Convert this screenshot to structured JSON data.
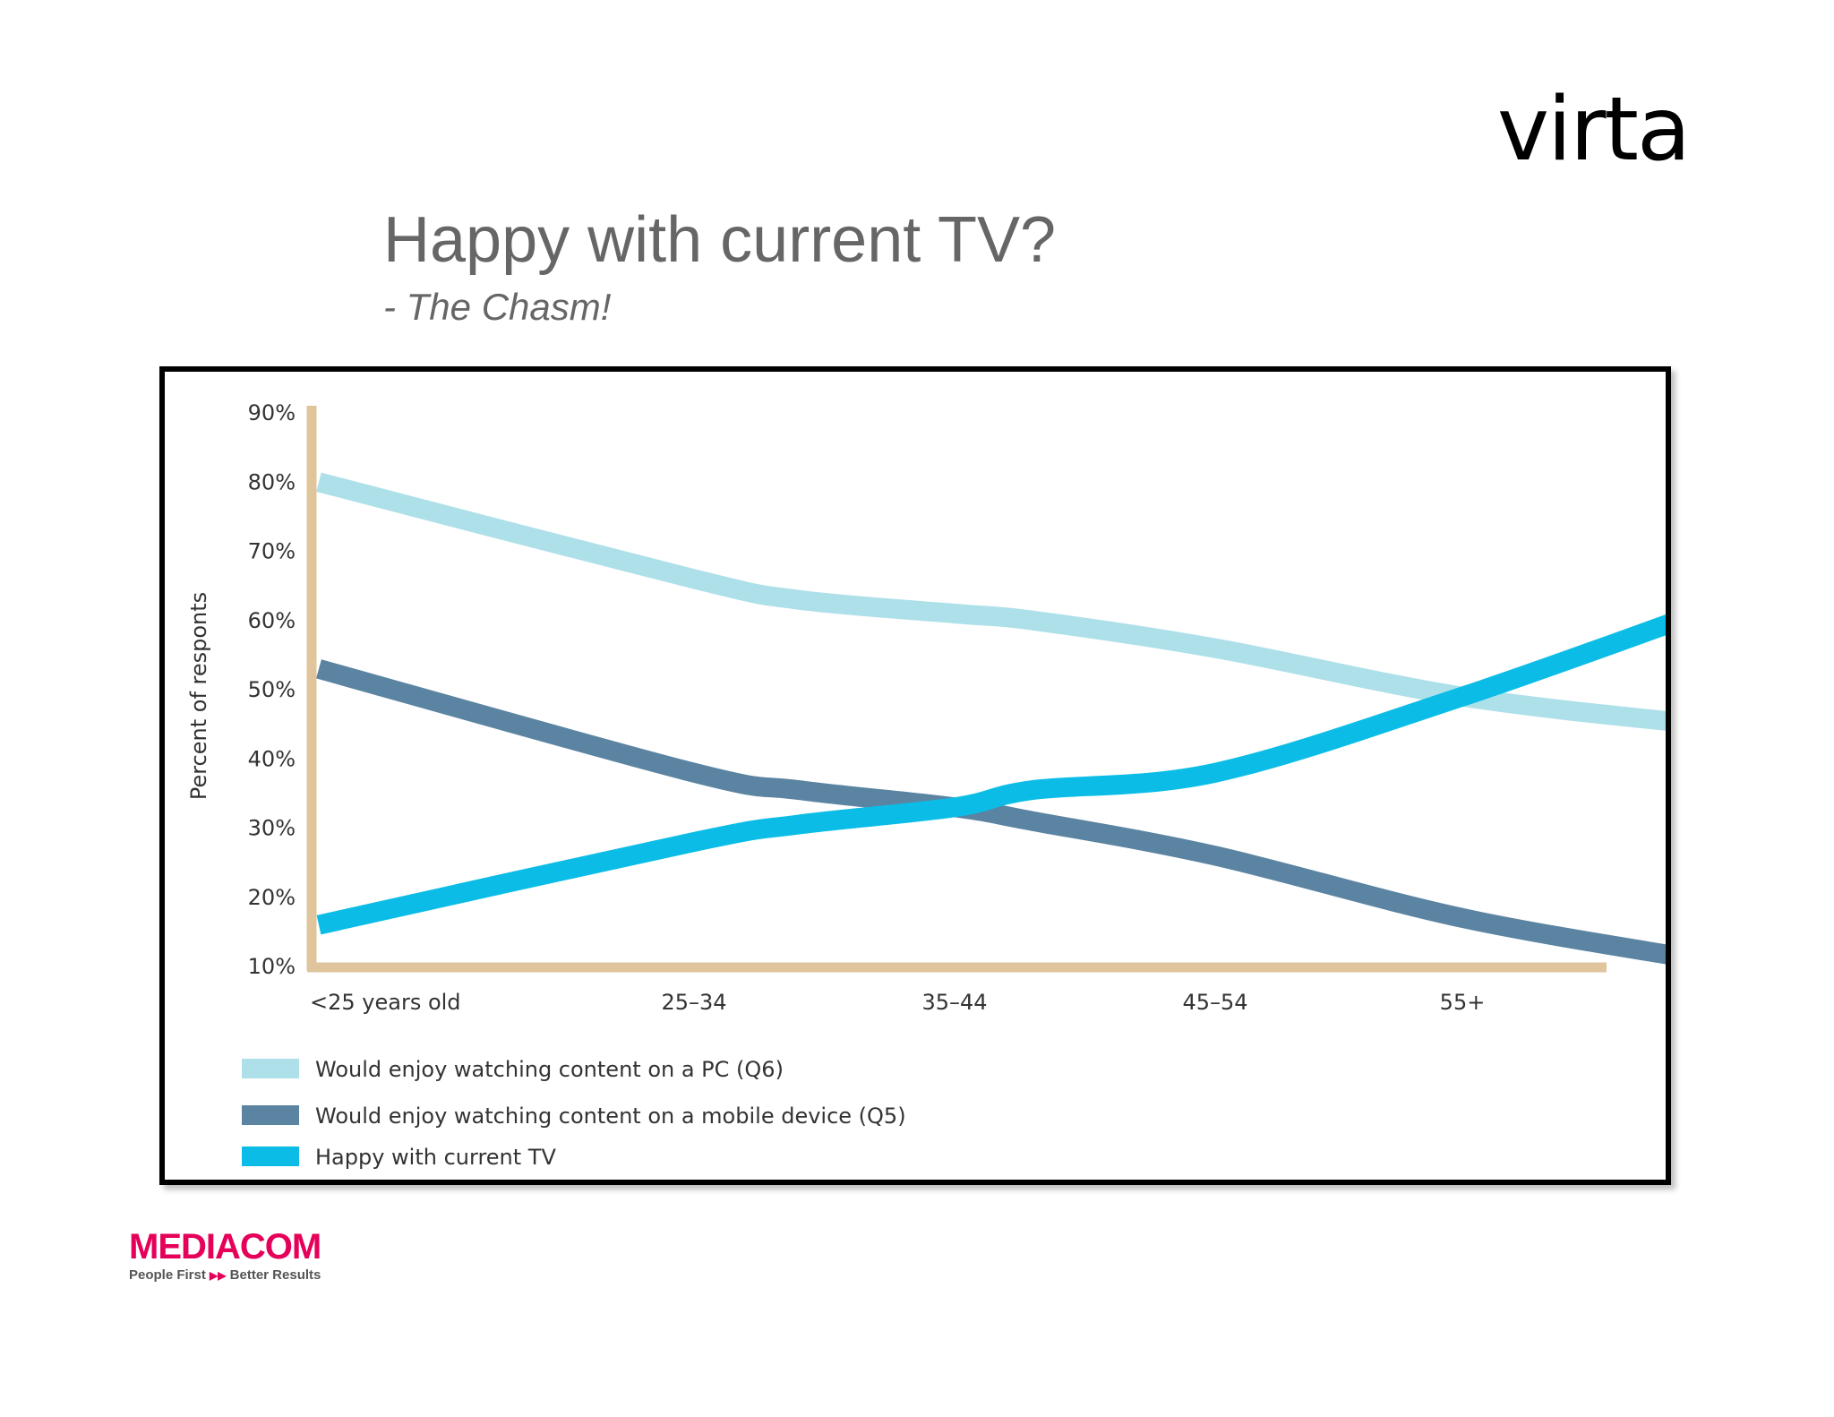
{
  "header": {
    "logo": "virta"
  },
  "slide": {
    "title": "Happy with current TV?",
    "subtitle": "- The Chasm!"
  },
  "footer": {
    "brand": "MEDIACOM",
    "tagline_left": "People First",
    "tagline_right": "Better Results",
    "brand_color": "#e5005a"
  },
  "chart_data": {
    "type": "line",
    "title": "",
    "xlabel": "",
    "ylabel": "Percent of responts",
    "categories": [
      "<25 years old",
      "25–34",
      "35–44",
      "45–54",
      "55+"
    ],
    "ylim": [
      10,
      90
    ],
    "yticks": [
      "90%",
      "80%",
      "70%",
      "60%",
      "50%",
      "40%",
      "30%",
      "20%",
      "10%"
    ],
    "grid": false,
    "legend_position": "bottom-left",
    "axis_color": "#e0c49c",
    "series": [
      {
        "name": "Would enjoy watching content on a PC (Q6)",
        "color": "#aee0ea",
        "x": [
          0,
          1,
          1.4,
          2,
          2.3,
          3,
          4,
          4.95
        ],
        "values": [
          80,
          66,
          63,
          61,
          60,
          56,
          49,
          45
        ]
      },
      {
        "name": "Would enjoy watching content on a mobile device (Q5)",
        "color": "#5b84a2",
        "x": [
          0,
          1,
          1.4,
          2,
          2.3,
          3,
          4,
          4.95
        ],
        "values": [
          53,
          38,
          35.5,
          33,
          31,
          26,
          17,
          11
        ]
      },
      {
        "name": "Happy with current TV",
        "color": "#0bbde6",
        "x": [
          0,
          1,
          1.4,
          2,
          2.3,
          3,
          4,
          4.95
        ],
        "values": [
          16,
          28,
          30.5,
          33,
          35.5,
          38,
          49,
          61
        ]
      }
    ]
  }
}
